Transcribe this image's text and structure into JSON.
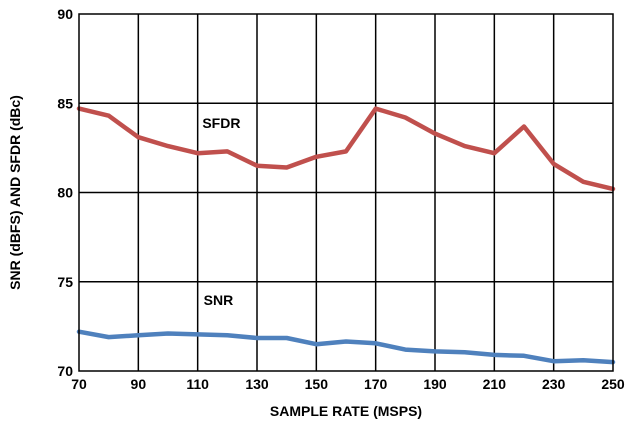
{
  "chart_data": {
    "type": "line",
    "title": "",
    "xlabel": "SAMPLE RATE (MSPS)",
    "ylabel": "SNR (dBFS) AND SFDR (dBc)",
    "xlim": [
      70,
      250
    ],
    "ylim": [
      70,
      90
    ],
    "x_ticks": [
      "70",
      "90",
      "110",
      "130",
      "150",
      "170",
      "190",
      "210",
      "230",
      "250"
    ],
    "y_ticks": [
      "70",
      "75",
      "80",
      "85",
      "90"
    ],
    "grid": true,
    "legend": "none",
    "x": [
      70,
      80,
      90,
      100,
      110,
      120,
      130,
      140,
      150,
      160,
      170,
      180,
      190,
      200,
      210,
      220,
      230,
      240,
      250
    ],
    "series": [
      {
        "name": "SFDR",
        "color": "#c0504d",
        "values": [
          84.7,
          84.3,
          83.1,
          82.6,
          82.2,
          82.3,
          81.5,
          81.4,
          82.0,
          82.3,
          84.7,
          84.2,
          83.3,
          82.6,
          82.2,
          83.7,
          81.6,
          80.6,
          80.2
        ]
      },
      {
        "name": "SNR",
        "color": "#4f81bd",
        "values": [
          72.2,
          71.9,
          72.0,
          72.1,
          72.05,
          72.0,
          71.85,
          71.85,
          71.5,
          71.65,
          71.55,
          71.2,
          71.1,
          71.05,
          70.9,
          70.85,
          70.55,
          70.6,
          70.5
        ]
      }
    ],
    "annotations": [
      {
        "text": "SFDR"
      },
      {
        "text": "SNR"
      }
    ]
  }
}
